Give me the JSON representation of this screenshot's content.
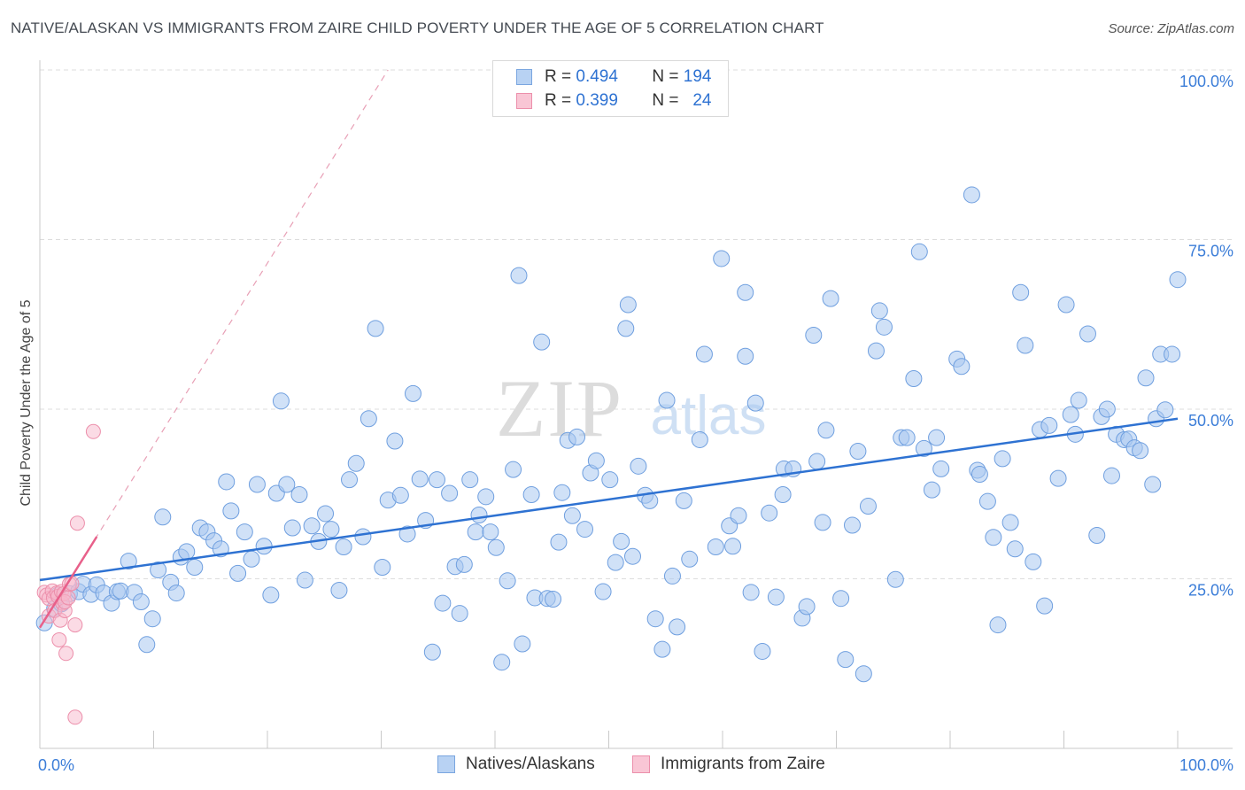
{
  "title": "NATIVE/ALASKAN VS IMMIGRANTS FROM ZAIRE CHILD POVERTY UNDER THE AGE OF 5 CORRELATION CHART",
  "source": "Source: ZipAtlas.com",
  "watermark": {
    "zip": "ZIP",
    "atlas": "atlas"
  },
  "legend": {
    "series1": {
      "r_label": "R =",
      "r_value": "0.494",
      "n_label": "N =",
      "n_value": "194"
    },
    "series2": {
      "r_label": "R =",
      "r_value": "0.399",
      "n_label": "N =",
      "n_value": "24"
    }
  },
  "colors": {
    "blue": "#2e72d2",
    "blue_fill": "#a9c8f0",
    "pink": "#e8608a",
    "pink_fill": "#f7b8cb",
    "tick_text": "#3b7dd8"
  },
  "chart_data": {
    "type": "scatter",
    "title": "NATIVE/ALASKAN VS IMMIGRANTS FROM ZAIRE CHILD POVERTY UNDER THE AGE OF 5 CORRELATION CHART",
    "xlabel": "",
    "ylabel": "Child Poverty Under the Age of 5",
    "xlim": [
      0,
      100
    ],
    "ylim": [
      0,
      100
    ],
    "x_tick_labels": [
      "0.0%",
      "100.0%"
    ],
    "y_ticks": [
      25,
      50,
      75,
      100
    ],
    "y_tick_labels": [
      "25.0%",
      "50.0%",
      "75.0%",
      "100.0%"
    ],
    "legend_position": "bottom-center",
    "series": [
      {
        "name": "Natives/Alaskans",
        "color": "#2e72d2",
        "trend": {
          "x": [
            0,
            100
          ],
          "y": [
            24.8,
            48.6
          ]
        },
        "points": [
          [
            0.4,
            18.5
          ],
          [
            1.3,
            20.6
          ],
          [
            1.6,
            22.6
          ],
          [
            1.9,
            21.3
          ],
          [
            2.6,
            22.8
          ],
          [
            3.4,
            23.1
          ],
          [
            3.8,
            24.2
          ],
          [
            4.5,
            22.7
          ],
          [
            5.0,
            24.1
          ],
          [
            5.6,
            22.9
          ],
          [
            6.3,
            21.4
          ],
          [
            6.8,
            23.1
          ],
          [
            7.1,
            23.2
          ],
          [
            7.8,
            27.6
          ],
          [
            8.3,
            23.0
          ],
          [
            8.9,
            21.6
          ],
          [
            9.4,
            15.3
          ],
          [
            9.9,
            19.1
          ],
          [
            10.4,
            26.3
          ],
          [
            10.8,
            34.1
          ],
          [
            11.5,
            24.5
          ],
          [
            12.0,
            22.9
          ],
          [
            12.4,
            28.2
          ],
          [
            12.9,
            29.0
          ],
          [
            13.6,
            26.7
          ],
          [
            14.1,
            32.5
          ],
          [
            14.7,
            31.9
          ],
          [
            15.3,
            30.6
          ],
          [
            15.9,
            29.4
          ],
          [
            16.4,
            39.3
          ],
          [
            16.8,
            35.0
          ],
          [
            17.4,
            25.8
          ],
          [
            18.0,
            31.9
          ],
          [
            18.6,
            27.9
          ],
          [
            19.1,
            38.9
          ],
          [
            19.7,
            29.8
          ],
          [
            20.3,
            22.6
          ],
          [
            20.8,
            37.6
          ],
          [
            21.2,
            51.2
          ],
          [
            21.7,
            38.9
          ],
          [
            22.2,
            32.5
          ],
          [
            22.8,
            37.4
          ],
          [
            23.3,
            24.8
          ],
          [
            23.9,
            32.8
          ],
          [
            24.5,
            30.5
          ],
          [
            25.1,
            34.6
          ],
          [
            25.6,
            32.3
          ],
          [
            26.3,
            23.3
          ],
          [
            26.7,
            29.7
          ],
          [
            27.2,
            39.6
          ],
          [
            27.8,
            42.0
          ],
          [
            28.4,
            31.2
          ],
          [
            28.9,
            48.6
          ],
          [
            29.5,
            61.9
          ],
          [
            30.1,
            26.7
          ],
          [
            30.6,
            36.6
          ],
          [
            31.2,
            45.3
          ],
          [
            31.7,
            37.3
          ],
          [
            32.3,
            31.6
          ],
          [
            32.8,
            52.3
          ],
          [
            33.4,
            39.7
          ],
          [
            33.9,
            33.6
          ],
          [
            34.5,
            14.2
          ],
          [
            34.9,
            39.6
          ],
          [
            35.4,
            21.4
          ],
          [
            36.0,
            37.6
          ],
          [
            36.5,
            26.8
          ],
          [
            36.9,
            19.9
          ],
          [
            37.3,
            27.1
          ],
          [
            37.8,
            39.6
          ],
          [
            38.3,
            31.9
          ],
          [
            38.6,
            34.4
          ],
          [
            39.2,
            37.1
          ],
          [
            39.6,
            31.9
          ],
          [
            40.1,
            29.6
          ],
          [
            40.6,
            12.7
          ],
          [
            41.1,
            24.7
          ],
          [
            41.6,
            41.1
          ],
          [
            42.1,
            69.7
          ],
          [
            42.4,
            15.4
          ],
          [
            43.2,
            37.4
          ],
          [
            43.5,
            22.2
          ],
          [
            44.1,
            59.9
          ],
          [
            44.6,
            22.1
          ],
          [
            45.1,
            22.0
          ],
          [
            45.6,
            30.4
          ],
          [
            45.9,
            37.7
          ],
          [
            46.4,
            45.4
          ],
          [
            46.8,
            34.3
          ],
          [
            47.2,
            45.9
          ],
          [
            47.9,
            32.3
          ],
          [
            48.4,
            40.6
          ],
          [
            48.9,
            42.4
          ],
          [
            49.5,
            23.1
          ],
          [
            50.1,
            39.6
          ],
          [
            50.6,
            27.4
          ],
          [
            51.1,
            30.5
          ],
          [
            51.5,
            61.9
          ],
          [
            51.7,
            65.4
          ],
          [
            52.1,
            28.3
          ],
          [
            52.6,
            41.6
          ],
          [
            53.2,
            37.3
          ],
          [
            53.6,
            36.5
          ],
          [
            54.1,
            19.1
          ],
          [
            54.7,
            14.6
          ],
          [
            55.1,
            51.3
          ],
          [
            55.6,
            25.4
          ],
          [
            56.0,
            17.9
          ],
          [
            56.6,
            36.5
          ],
          [
            57.1,
            27.9
          ],
          [
            58.0,
            45.5
          ],
          [
            58.4,
            58.1
          ],
          [
            59.4,
            29.7
          ],
          [
            59.9,
            72.2
          ],
          [
            60.6,
            32.8
          ],
          [
            60.9,
            29.8
          ],
          [
            61.4,
            34.3
          ],
          [
            62.0,
            57.8
          ],
          [
            62.0,
            67.2
          ],
          [
            62.5,
            23.0
          ],
          [
            62.9,
            50.9
          ],
          [
            63.5,
            14.3
          ],
          [
            64.1,
            34.7
          ],
          [
            64.7,
            22.3
          ],
          [
            65.3,
            37.4
          ],
          [
            65.4,
            41.2
          ],
          [
            66.2,
            41.2
          ],
          [
            67.0,
            19.2
          ],
          [
            67.4,
            20.9
          ],
          [
            68.0,
            60.9
          ],
          [
            68.3,
            42.3
          ],
          [
            68.8,
            33.3
          ],
          [
            69.1,
            46.9
          ],
          [
            69.5,
            66.3
          ],
          [
            70.4,
            22.1
          ],
          [
            70.8,
            13.1
          ],
          [
            71.4,
            32.9
          ],
          [
            71.9,
            43.8
          ],
          [
            72.4,
            11.0
          ],
          [
            72.8,
            35.7
          ],
          [
            73.5,
            58.6
          ],
          [
            73.8,
            64.5
          ],
          [
            74.2,
            62.1
          ],
          [
            75.2,
            24.9
          ],
          [
            75.7,
            45.8
          ],
          [
            76.2,
            45.8
          ],
          [
            76.8,
            54.5
          ],
          [
            77.3,
            73.2
          ],
          [
            77.7,
            44.2
          ],
          [
            78.4,
            38.1
          ],
          [
            78.8,
            45.8
          ],
          [
            79.2,
            41.2
          ],
          [
            80.6,
            57.4
          ],
          [
            81.0,
            56.3
          ],
          [
            81.9,
            81.6
          ],
          [
            82.4,
            41.0
          ],
          [
            82.6,
            40.4
          ],
          [
            83.3,
            36.4
          ],
          [
            83.8,
            31.1
          ],
          [
            84.2,
            18.2
          ],
          [
            84.6,
            42.7
          ],
          [
            85.3,
            33.3
          ],
          [
            85.7,
            29.4
          ],
          [
            86.2,
            67.2
          ],
          [
            86.6,
            59.4
          ],
          [
            87.3,
            27.5
          ],
          [
            87.9,
            47.0
          ],
          [
            88.3,
            21.0
          ],
          [
            88.7,
            47.6
          ],
          [
            89.5,
            39.8
          ],
          [
            90.2,
            65.4
          ],
          [
            90.6,
            49.2
          ],
          [
            91.0,
            46.3
          ],
          [
            91.3,
            51.3
          ],
          [
            92.1,
            61.1
          ],
          [
            92.9,
            31.4
          ],
          [
            93.3,
            48.9
          ],
          [
            93.8,
            50.0
          ],
          [
            94.2,
            40.2
          ],
          [
            94.6,
            46.3
          ],
          [
            95.3,
            45.5
          ],
          [
            95.7,
            45.6
          ],
          [
            96.2,
            44.3
          ],
          [
            96.7,
            43.9
          ],
          [
            97.2,
            54.6
          ],
          [
            97.8,
            38.9
          ],
          [
            98.1,
            48.6
          ],
          [
            98.5,
            58.1
          ],
          [
            98.9,
            49.9
          ],
          [
            99.5,
            58.1
          ],
          [
            100.0,
            69.1
          ]
        ]
      },
      {
        "name": "Immigrants from Zaire",
        "color": "#e8608a",
        "trend": {
          "x": [
            0,
            5.0
          ],
          "y": [
            17.8,
            31.2
          ]
        },
        "trend_extended": {
          "x": [
            0,
            30.6
          ],
          "y": [
            17.8,
            100
          ]
        },
        "points": [
          [
            0.4,
            23.0
          ],
          [
            0.6,
            22.6
          ],
          [
            0.8,
            22.1
          ],
          [
            0.8,
            19.5
          ],
          [
            1.1,
            23.2
          ],
          [
            1.2,
            22.2
          ],
          [
            1.3,
            20.3
          ],
          [
            1.5,
            22.9
          ],
          [
            1.6,
            22.4
          ],
          [
            1.7,
            16.0
          ],
          [
            1.8,
            18.9
          ],
          [
            1.9,
            23.1
          ],
          [
            2.0,
            21.4
          ],
          [
            2.1,
            22.8
          ],
          [
            2.2,
            20.3
          ],
          [
            2.2,
            21.6
          ],
          [
            2.3,
            14.0
          ],
          [
            2.5,
            22.2
          ],
          [
            2.6,
            24.2
          ],
          [
            2.8,
            24.3
          ],
          [
            3.1,
            4.6
          ],
          [
            3.1,
            18.2
          ],
          [
            3.3,
            33.2
          ],
          [
            4.7,
            46.7
          ]
        ]
      }
    ]
  }
}
